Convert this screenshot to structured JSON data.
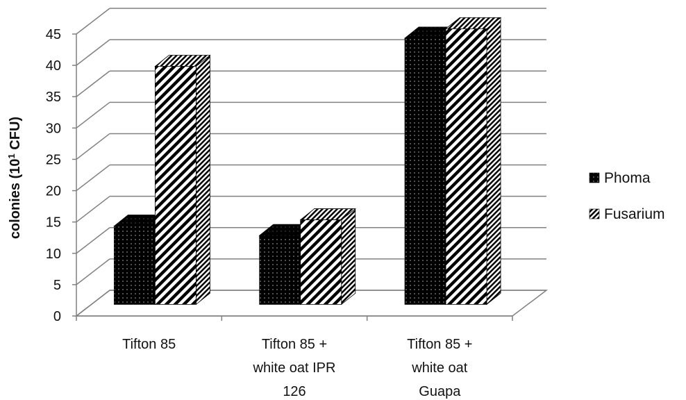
{
  "chart_data": {
    "type": "bar",
    "style": "3d-clustered-column",
    "ylabel": "colonies (10",
    "ylabel_sup": "1",
    "ylabel_end": " CFU)",
    "xlabel": "",
    "ylim": [
      0,
      45
    ],
    "yticks": [
      "0",
      "5",
      "10",
      "15",
      "20",
      "25",
      "30",
      "35",
      "40",
      "45"
    ],
    "grid": true,
    "legend_placement": "right",
    "categories": [
      [
        "Tifton 85"
      ],
      [
        "Tifton 85 +",
        "white oat IPR",
        "126"
      ],
      [
        "Tifton 85 +",
        "white oat",
        "Guapa"
      ]
    ],
    "series": [
      {
        "name": "Phoma",
        "pattern": "dotted-black",
        "values": [
          12.5,
          11.0,
          42.5
        ]
      },
      {
        "name": "Fusarium",
        "pattern": "diagonal-stripes",
        "values": [
          38.0,
          13.5,
          44.0
        ]
      }
    ],
    "colors": {
      "bar_fill": "#000000",
      "grid": "#808080",
      "axis": "#808080",
      "stripe_bg": "#ffffff"
    }
  }
}
